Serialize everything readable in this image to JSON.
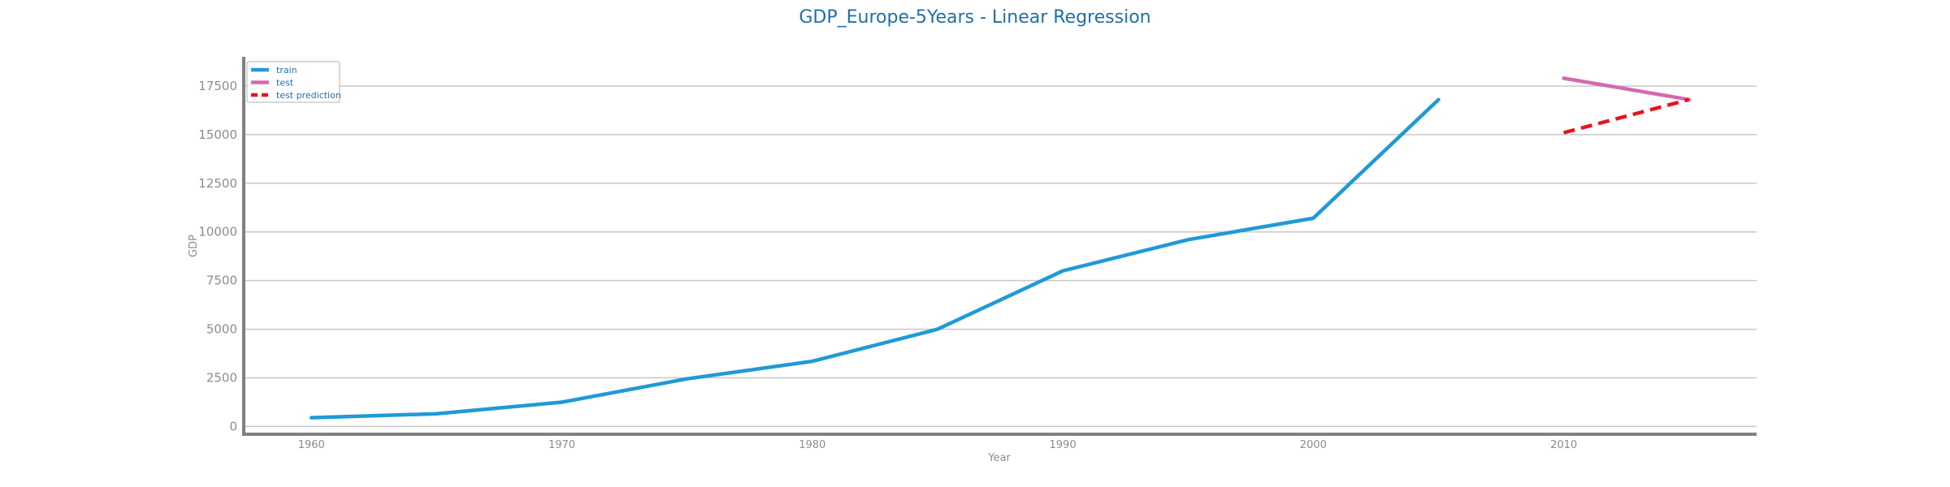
{
  "chart_data": {
    "type": "line",
    "title": "GDP_Europe-5Years - Linear Regression",
    "xlabel": "Year",
    "ylabel": "GDP",
    "xlim": [
      1957.3,
      2017.7
    ],
    "ylim": [
      -400,
      19000
    ],
    "xticks": [
      1960,
      1970,
      1980,
      1990,
      2000,
      2010
    ],
    "yticks": [
      0,
      2500,
      5000,
      7500,
      10000,
      12500,
      15000,
      17500
    ],
    "grid": "horizontal",
    "legend": "top-left",
    "series": [
      {
        "name": "train",
        "color": "#1f9ad6",
        "style": "solid",
        "x": [
          1960,
          1965,
          1970,
          1975,
          1980,
          1985,
          1990,
          1995,
          2000,
          2005
        ],
        "y": [
          450,
          650,
          1250,
          2450,
          3350,
          5000,
          8000,
          9600,
          10700,
          16800
        ]
      },
      {
        "name": "test",
        "color": "#d46aae",
        "style": "solid",
        "x": [
          2010,
          2015
        ],
        "y": [
          17900,
          16800
        ]
      },
      {
        "name": "test prediction",
        "color": "#e8141c",
        "style": "dashed",
        "x": [
          2010,
          2015
        ],
        "y": [
          15100,
          16800
        ]
      }
    ]
  }
}
